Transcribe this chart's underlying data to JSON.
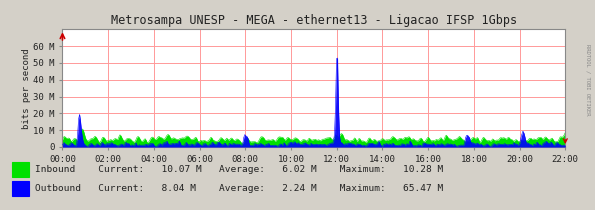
{
  "title": "Metrosampa UNESP - MEGA - ethernet13 - Ligacao IFSP 1Gbps",
  "ylabel": "bits per second",
  "bg_color": "#d4d0c8",
  "plot_bg_color": "#ffffff",
  "grid_color": "#ff9999",
  "border_color": "#888888",
  "yticks": [
    0,
    10,
    20,
    30,
    40,
    50,
    60
  ],
  "ytick_labels": [
    "0",
    "10 M",
    "20 M",
    "30 M",
    "40 M",
    "50 M",
    "60 M"
  ],
  "ylim": [
    0,
    70
  ],
  "xtick_labels": [
    "00:00",
    "02:00",
    "04:00",
    "06:00",
    "08:00",
    "10:00",
    "12:00",
    "14:00",
    "16:00",
    "18:00",
    "20:00",
    "22:00"
  ],
  "inbound_color": "#00e000",
  "outbound_color": "#0000ff",
  "title_color": "#222222",
  "tick_color": "#222222",
  "rrdtool_text": "RRDTOOL / TOBI OETIKER",
  "arrow_color": "#cc0000",
  "legend": [
    {
      "label": "Inbound",
      "color": "#00e000",
      "current": "10.07 M",
      "average": "6.02 M",
      "maximum": "10.28 M"
    },
    {
      "label": "Outbound",
      "color": "#0000ff",
      "current": "8.04 M",
      "average": "2.24 M",
      "maximum": "65.47 M"
    }
  ],
  "n_points": 500
}
